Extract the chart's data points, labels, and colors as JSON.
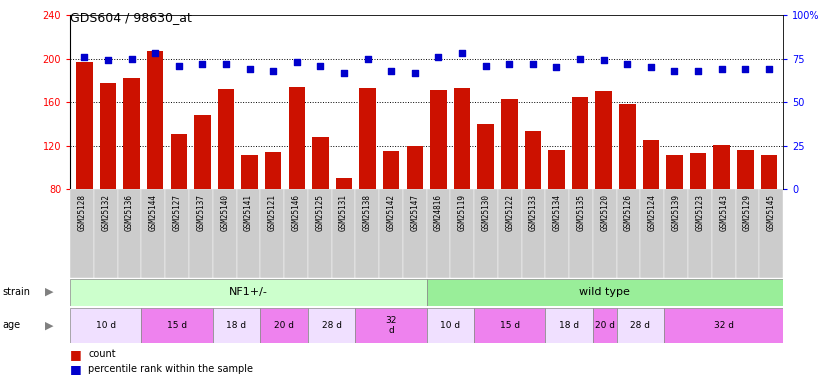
{
  "title": "GDS604 / 98630_at",
  "samples": [
    "GSM25128",
    "GSM25132",
    "GSM25136",
    "GSM25144",
    "GSM25127",
    "GSM25137",
    "GSM25140",
    "GSM25141",
    "GSM25121",
    "GSM25146",
    "GSM25125",
    "GSM25131",
    "GSM25138",
    "GSM25142",
    "GSM25147",
    "GSM24816",
    "GSM25119",
    "GSM25130",
    "GSM25122",
    "GSM25133",
    "GSM25134",
    "GSM25135",
    "GSM25120",
    "GSM25126",
    "GSM25124",
    "GSM25139",
    "GSM25123",
    "GSM25143",
    "GSM25129",
    "GSM25145"
  ],
  "counts": [
    197,
    178,
    182,
    207,
    131,
    148,
    172,
    112,
    114,
    174,
    128,
    90,
    173,
    115,
    120,
    171,
    173,
    140,
    163,
    134,
    116,
    165,
    170,
    158,
    125,
    112,
    113,
    121,
    116,
    112
  ],
  "percentile": [
    76,
    74,
    75,
    78,
    71,
    72,
    72,
    69,
    68,
    73,
    71,
    67,
    75,
    68,
    67,
    76,
    78,
    71,
    72,
    72,
    70,
    75,
    74,
    72,
    70,
    68,
    68,
    69,
    69,
    69
  ],
  "age_groups": [
    {
      "label": "10 d",
      "start": 0,
      "end": 3,
      "color": "#F0E0FF"
    },
    {
      "label": "15 d",
      "start": 3,
      "end": 6,
      "color": "#EE82EE"
    },
    {
      "label": "18 d",
      "start": 6,
      "end": 8,
      "color": "#F0E0FF"
    },
    {
      "label": "20 d",
      "start": 8,
      "end": 10,
      "color": "#EE82EE"
    },
    {
      "label": "28 d",
      "start": 10,
      "end": 12,
      "color": "#F0E0FF"
    },
    {
      "label": "32\nd",
      "start": 12,
      "end": 15,
      "color": "#EE82EE"
    },
    {
      "label": "10 d",
      "start": 15,
      "end": 17,
      "color": "#F0E0FF"
    },
    {
      "label": "15 d",
      "start": 17,
      "end": 20,
      "color": "#EE82EE"
    },
    {
      "label": "18 d",
      "start": 20,
      "end": 22,
      "color": "#F0E0FF"
    },
    {
      "label": "20 d",
      "start": 22,
      "end": 23,
      "color": "#EE82EE"
    },
    {
      "label": "28 d",
      "start": 23,
      "end": 25,
      "color": "#F0E0FF"
    },
    {
      "label": "32 d",
      "start": 25,
      "end": 30,
      "color": "#EE82EE"
    }
  ],
  "ylim_left": [
    80,
    240
  ],
  "ylim_right": [
    0,
    100
  ],
  "yticks_left": [
    80,
    120,
    160,
    200,
    240
  ],
  "yticks_right": [
    0,
    25,
    50,
    75,
    100
  ],
  "bar_color": "#CC1100",
  "dot_color": "#0000CC",
  "background_color": "#FFFFFF",
  "grid_lines": [
    120,
    160,
    200
  ],
  "strain_nf1_color": "#CCFFCC",
  "strain_wt_color": "#99EE99",
  "xticklabel_bg": "#CCCCCC"
}
